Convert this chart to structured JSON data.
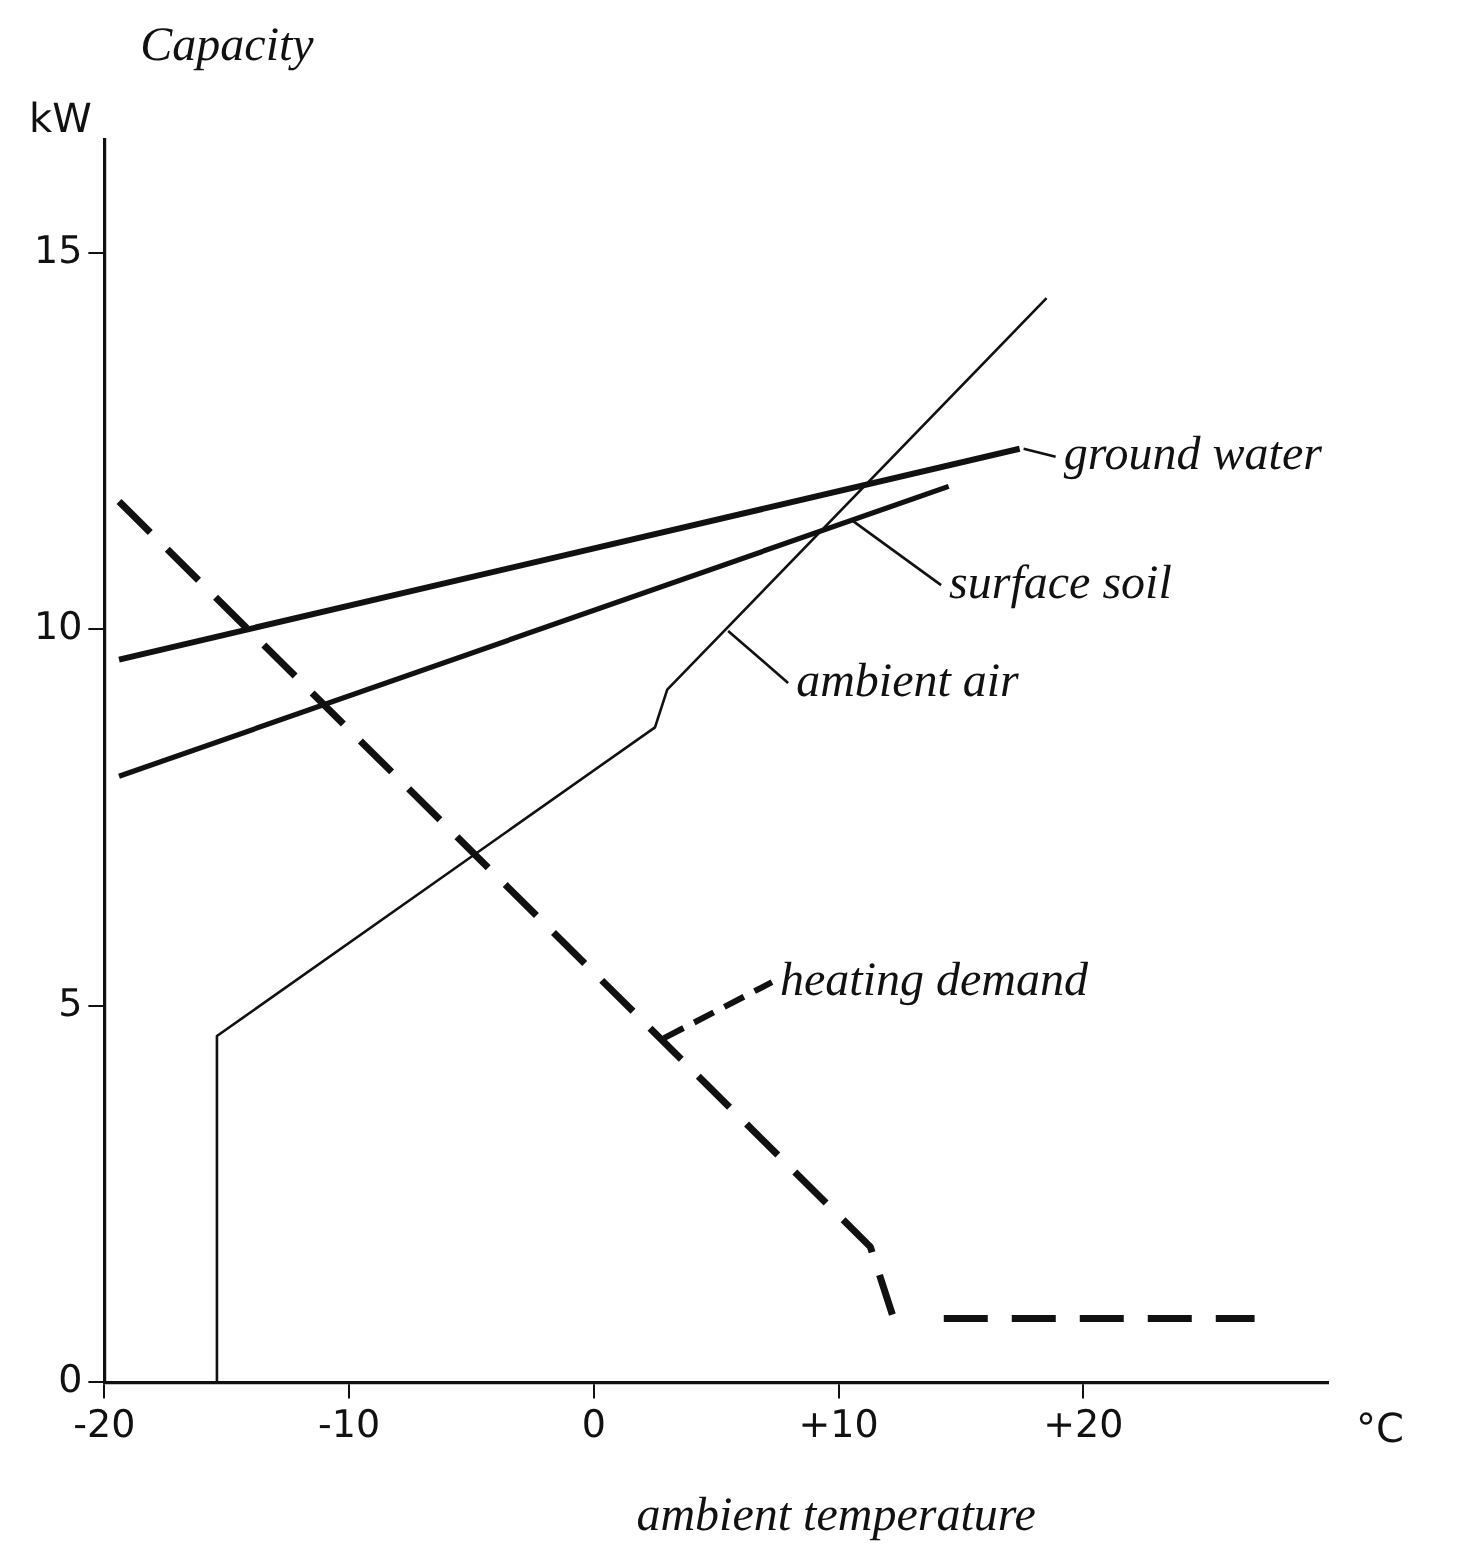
{
  "chart_data": {
    "type": "line",
    "ylabel": "Capacity",
    "xlabel": "ambient temperature",
    "annotations": [
      "kW",
      "°C"
    ],
    "xlim": [
      -20,
      30
    ],
    "ylim": [
      0,
      16.5
    ],
    "xticks": [
      -20,
      -10,
      0,
      {
        "value": 10,
        "label": "+10"
      },
      {
        "value": 20,
        "label": "+20"
      }
    ],
    "yticks": [
      0,
      5,
      10,
      15
    ],
    "grid": false,
    "legend": "right",
    "marker": "none",
    "series": [
      {
        "name": "ground water",
        "color": "#111111",
        "line_style": "solid",
        "x": [
          -19.4,
          17.4
        ],
        "values": [
          9.6,
          12.4
        ]
      },
      {
        "name": "surface soil",
        "color": "#111111",
        "line_style": "solid",
        "x": [
          -19.4,
          14.5
        ],
        "values": [
          8.05,
          11.9
        ]
      },
      {
        "name": "ambient air",
        "color": "#111111",
        "line_style": "solid",
        "x": [
          -15.4,
          -15.4,
          2.5,
          3.0,
          18.5
        ],
        "values": [
          0,
          4.6,
          8.7,
          9.2,
          14.4
        ]
      },
      {
        "name": "heating demand",
        "color": "#111111",
        "line_style": "dashed",
        "x": [
          -19.4,
          11.3,
          12.2,
          null,
          14.3,
          27
        ],
        "values": [
          11.7,
          1.8,
          0.9,
          null,
          0.85,
          0.85
        ]
      }
    ]
  }
}
